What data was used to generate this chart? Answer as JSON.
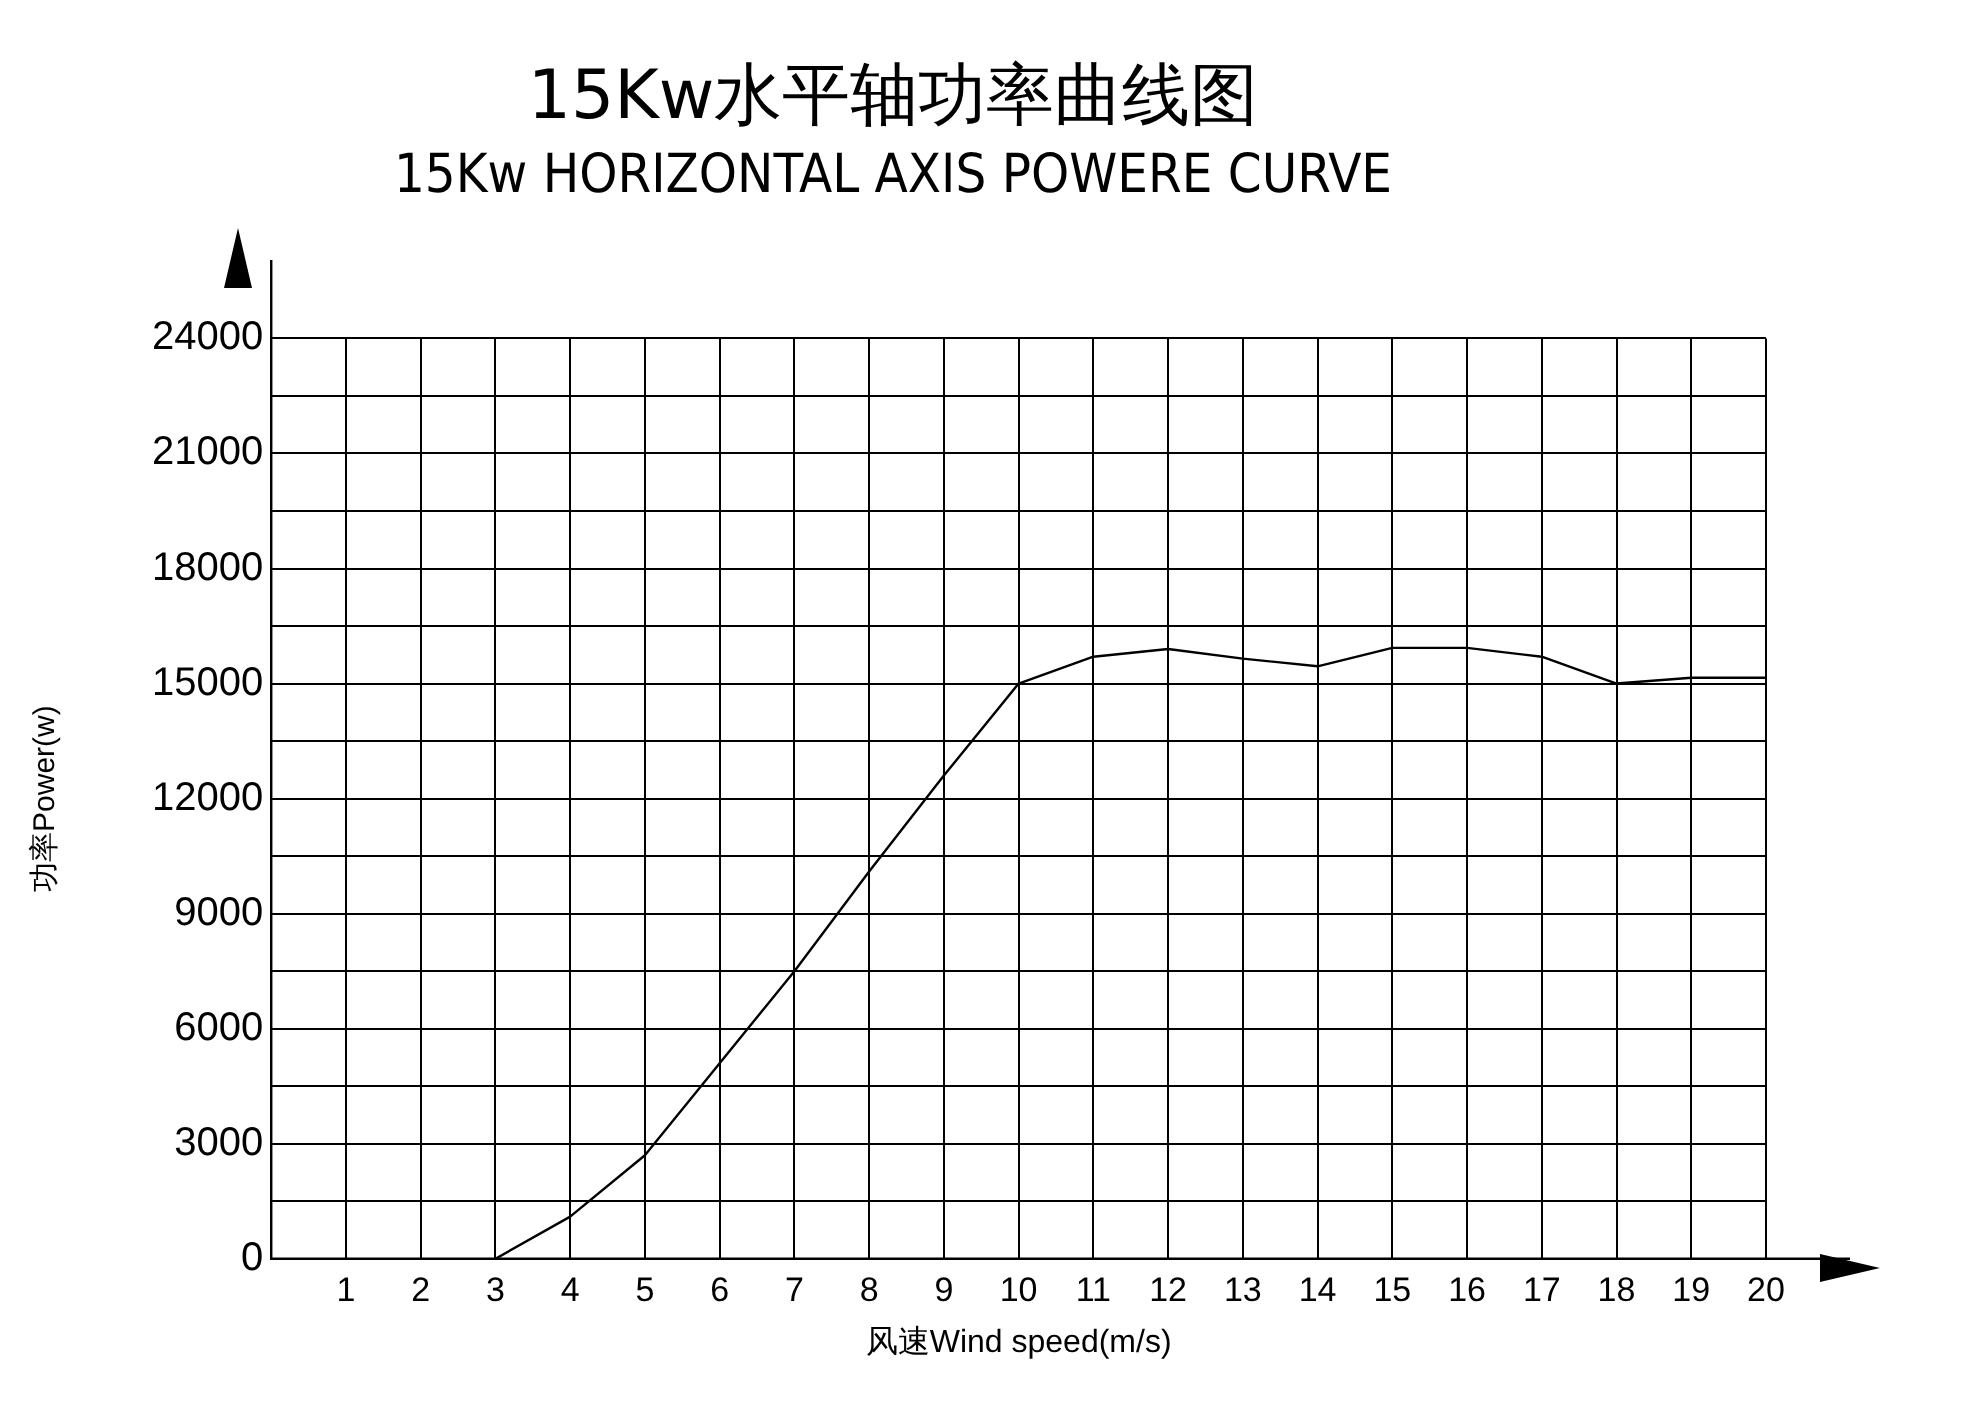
{
  "chart_data": {
    "type": "line",
    "title": "15Kw水平轴功率曲线图",
    "subtitle": "15Kw HORIZONTAL AXIS POWERE CURVE",
    "xlabel": "风速Wind speed(m/s)",
    "ylabel": "功率Power(w)",
    "x": [
      3,
      4,
      5,
      6,
      7,
      8,
      9,
      10,
      11,
      12,
      13,
      14,
      15,
      16,
      17,
      18,
      19,
      20
    ],
    "series": [
      {
        "color": "#000000",
        "values": [
          0,
          1100,
          2700,
          5100,
          7500,
          10100,
          12600,
          15000,
          15700,
          15900,
          15650,
          15450,
          15930,
          15930,
          15700,
          15000,
          15150,
          15150
        ]
      }
    ],
    "xlim": [
      0,
      20
    ],
    "xticks": [
      1,
      2,
      3,
      4,
      5,
      6,
      7,
      8,
      9,
      10,
      11,
      12,
      13,
      14,
      15,
      16,
      17,
      18,
      19,
      20
    ],
    "ylim": [
      0,
      24000
    ],
    "yticks": [
      0,
      {
        "value": 1500,
        "label": null
      },
      3000,
      {
        "value": 4500,
        "label": null
      },
      6000,
      {
        "value": 7500,
        "label": null
      },
      9000,
      {
        "value": 10500,
        "label": null
      },
      12000,
      {
        "value": 13500,
        "label": null
      },
      15000,
      {
        "value": 16500,
        "label": null
      },
      18000,
      {
        "value": 19500,
        "label": null
      },
      21000,
      {
        "value": 22500,
        "label": null
      },
      24000
    ],
    "grid": true,
    "legend": false,
    "marker": "none",
    "line_style": "solid"
  }
}
